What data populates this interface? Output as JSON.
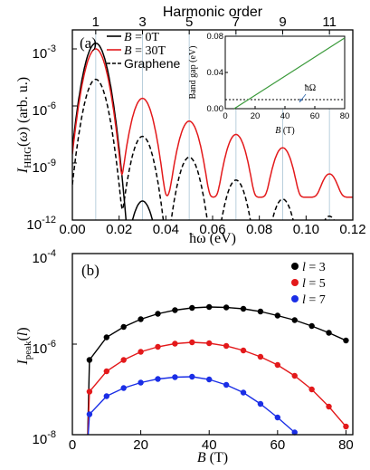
{
  "chart_data": [
    {
      "type": "line",
      "panel_label": "(a)",
      "top_axis_label": "Harmonic order",
      "top_tick_labels": [
        "1",
        "3",
        "5",
        "7",
        "9",
        "11"
      ],
      "xlabel": "ħω (eV)",
      "ylabel": "I_HHG(ω) (arb. u.)",
      "xlim": [
        0,
        0.12
      ],
      "ylim_log10": [
        -12,
        -2
      ],
      "y_scale": "log",
      "x_tick_labels": [
        "0.00",
        "0.02",
        "0.04",
        "0.06",
        "0.08",
        "0.10",
        "0.12"
      ],
      "y_tick_labels": [
        {
          "base": "10",
          "exp": "-3",
          "v": -3
        },
        {
          "base": "10",
          "exp": "-6",
          "v": -6
        },
        {
          "base": "10",
          "exp": "-9",
          "v": -9
        },
        {
          "base": "10",
          "exp": "-12",
          "v": -12
        }
      ],
      "harmonic_energies_eV": [
        0.01,
        0.03,
        0.05,
        0.07,
        0.09,
        0.11
      ],
      "legend_position": "top-left",
      "series": [
        {
          "name": "B = 0T",
          "legend_main": "B",
          "legend_rest": " = 0T",
          "color": "#000000",
          "dash": "solid",
          "peak_log10": [
            -2.7,
            -11.0,
            -13.5,
            -14.0,
            -14.0,
            -14.0
          ],
          "floor_log10": -14.0
        },
        {
          "name": "B = 30T",
          "legend_main": "B",
          "legend_rest": " = 30T",
          "color": "#e3191b",
          "dash": "solid",
          "peak_log10": [
            -3.0,
            -5.6,
            -6.8,
            -7.5,
            -8.2,
            -9.6
          ],
          "floor_log10": -10.8
        },
        {
          "name": "Graphene",
          "legend_main": "",
          "legend_rest": "Graphene",
          "color": "#000000",
          "dash": "dashed",
          "peak_log10": [
            -4.6,
            -7.6,
            -8.7,
            -9.9,
            -10.9,
            -11.8
          ],
          "floor_log10": -14.0
        }
      ],
      "inset": {
        "xlabel": "B (T)",
        "ylabel": "Band gap (eV)",
        "xlim": [
          0,
          80
        ],
        "ylim": [
          0,
          0.08
        ],
        "x_tick_labels": [
          "0",
          "20",
          "40",
          "60",
          "80"
        ],
        "y_tick_labels": [
          "0.00",
          "0.04",
          "0.08"
        ],
        "annotation": "ħΩ",
        "hbar_omega_eV": 0.01,
        "gap_line": {
          "color": "#3a9a3a",
          "x": [
            6,
            80
          ],
          "y": [
            0.0,
            0.0781
          ]
        }
      }
    },
    {
      "type": "line",
      "panel_label": "(b)",
      "xlabel": "B (T)",
      "ylabel": "I_peak(l)",
      "xlim": [
        0,
        82
      ],
      "ylim_log10": [
        -8,
        -4
      ],
      "y_scale": "log",
      "x_tick_labels": [
        "0",
        "20",
        "40",
        "60",
        "80"
      ],
      "y_tick_labels": [
        {
          "base": "10",
          "exp": "-4",
          "v": -4
        },
        {
          "base": "10",
          "exp": "-6",
          "v": -6
        },
        {
          "base": "10",
          "exp": "-8",
          "v": -8
        }
      ],
      "legend_position": "top-right",
      "series": [
        {
          "name": "l = 3",
          "legend_main": "l",
          "legend_rest": " = 3",
          "color": "#000000",
          "x": [
            5,
            10,
            15,
            20,
            25,
            30,
            35,
            40,
            45,
            50,
            55,
            60,
            65,
            70,
            75,
            80
          ],
          "log10_y": [
            -6.35,
            -5.85,
            -5.62,
            -5.45,
            -5.33,
            -5.25,
            -5.2,
            -5.18,
            -5.19,
            -5.22,
            -5.28,
            -5.37,
            -5.47,
            -5.6,
            -5.75,
            -5.92
          ]
        },
        {
          "name": "l = 5",
          "legend_main": "l",
          "legend_rest": " = 5",
          "color": "#e3191b",
          "x": [
            5,
            10,
            15,
            20,
            25,
            30,
            35,
            40,
            45,
            50,
            55,
            60,
            65,
            70,
            75,
            80
          ],
          "log10_y": [
            -7.05,
            -6.6,
            -6.35,
            -6.17,
            -6.06,
            -5.99,
            -5.96,
            -5.98,
            -6.04,
            -6.14,
            -6.28,
            -6.46,
            -6.7,
            -7.0,
            -7.38,
            -7.82
          ]
        },
        {
          "name": "l = 7",
          "legend_main": "l",
          "legend_rest": " = 7",
          "color": "#1a2ee6",
          "x": [
            5,
            10,
            15,
            20,
            25,
            30,
            35,
            40,
            45,
            50,
            55,
            60,
            65
          ],
          "log10_y": [
            -7.55,
            -7.15,
            -6.97,
            -6.85,
            -6.77,
            -6.73,
            -6.72,
            -6.78,
            -6.9,
            -7.07,
            -7.32,
            -7.62,
            -7.95
          ]
        }
      ]
    }
  ]
}
